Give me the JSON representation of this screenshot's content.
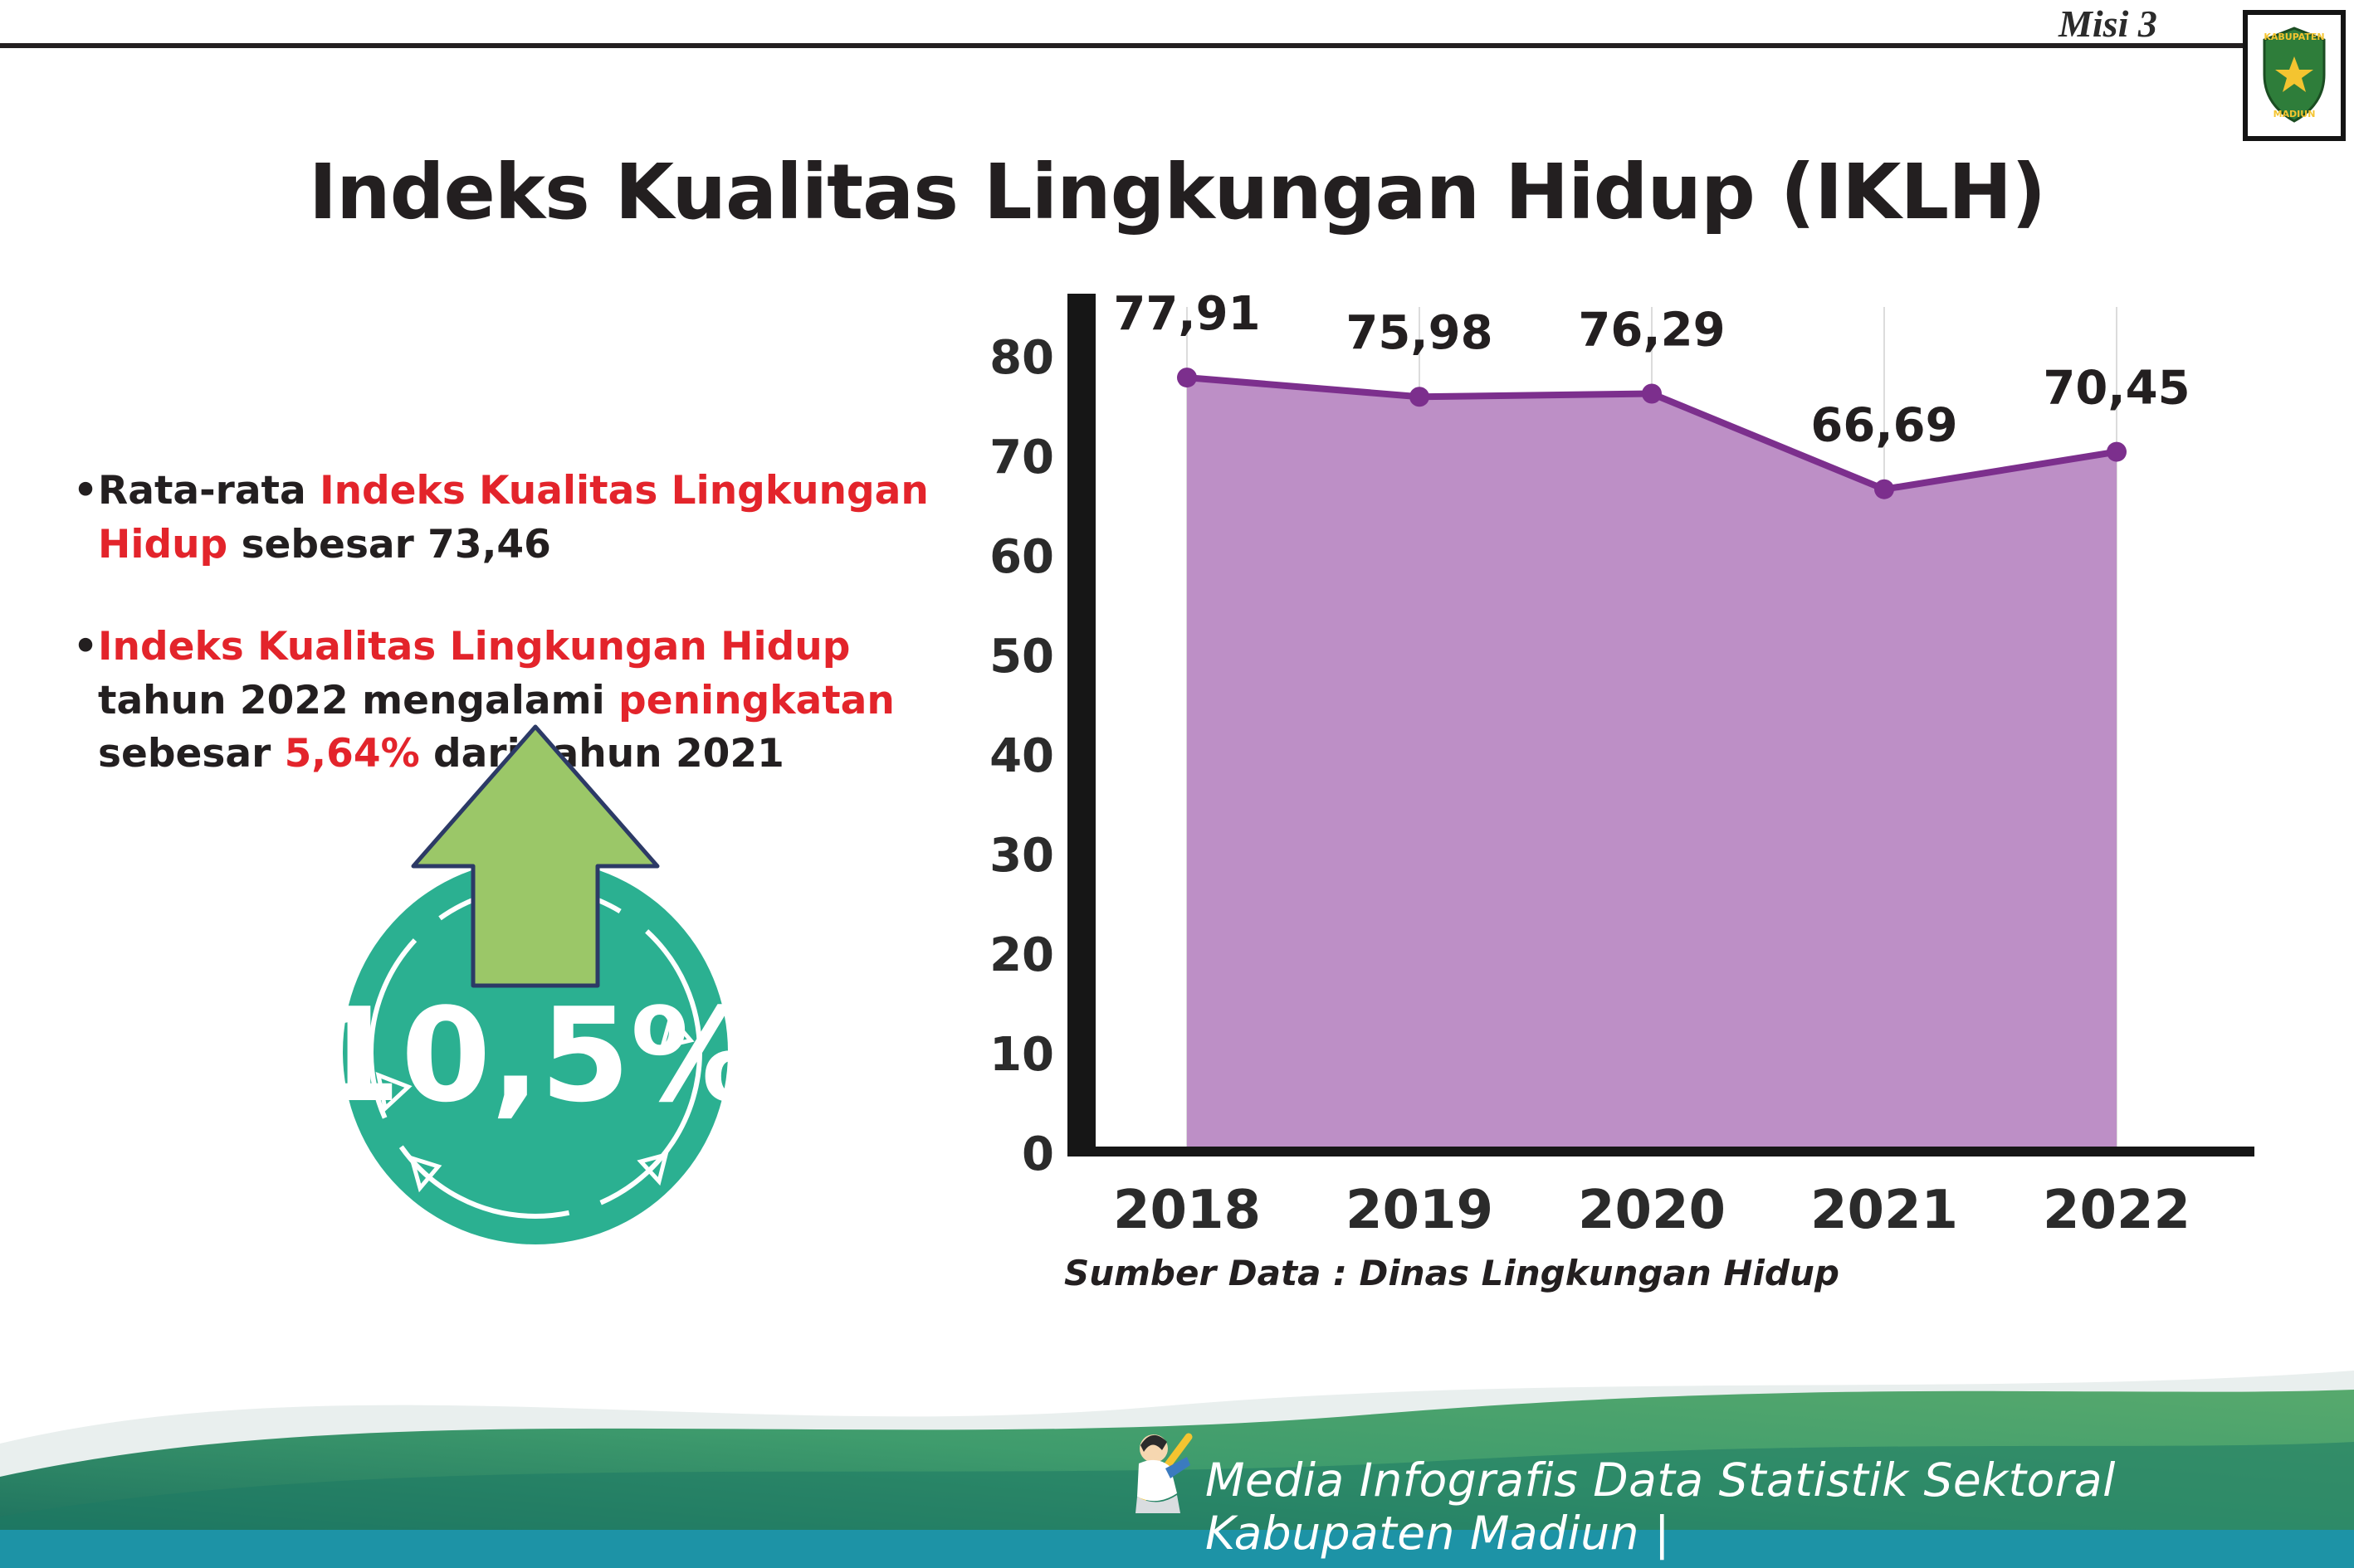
{
  "page": {
    "misi_label": "Misi 3",
    "title": "Indeks Kualitas Lingkungan Hidup (IKLH)",
    "logo_text_top": "KABUPATEN",
    "logo_text_bottom": "MADIUN"
  },
  "colors": {
    "accent_red": "#e3242b",
    "text_dark": "#231f20",
    "badge_teal": "#2bb091",
    "arrow_green": "#9bc768",
    "chart_area": "#bd8fc6",
    "chart_line": "#7c2f8d",
    "footer_strip": "#1d93a6"
  },
  "bullets": {
    "marker": "•",
    "b1_black1": "Rata-rata ",
    "b1_red": "Indeks Kualitas Lingkungan Hidup",
    "b1_black2": " sebesar 73,46",
    "b2_red1": "Indeks Kualitas Lingkungan Hidup",
    "b2_black1": " tahun 2022 mengalami ",
    "b2_red2": "peningkatan",
    "b2_black2": " sebesar ",
    "b2_red3": "5,64%",
    "b2_black3": " dari tahun 2021"
  },
  "badge": {
    "value": "10,5%"
  },
  "chart_data": {
    "type": "area",
    "title": "Indeks Kualitas Lingkungan Hidup (IKLH)",
    "categories": [
      "2018",
      "2019",
      "2020",
      "2021",
      "2022"
    ],
    "values": [
      77.91,
      75.98,
      76.29,
      66.69,
      70.45
    ],
    "value_labels": [
      "77,91",
      "75,98",
      "76,29",
      "66,69",
      "70,45"
    ],
    "ylim": [
      0,
      80
    ],
    "yticks": [
      0,
      10,
      20,
      30,
      40,
      50,
      60,
      70,
      80
    ],
    "grid": "vertical-light",
    "legend": "none",
    "area_color": "#bd8fc6",
    "line_color": "#7c2f8d",
    "source_note": "Sumber Data : Dinas Lingkungan Hidup"
  },
  "footer": {
    "credit": "Media Infografis Data Statistik Sektoral Kabupaten Madiun |"
  }
}
